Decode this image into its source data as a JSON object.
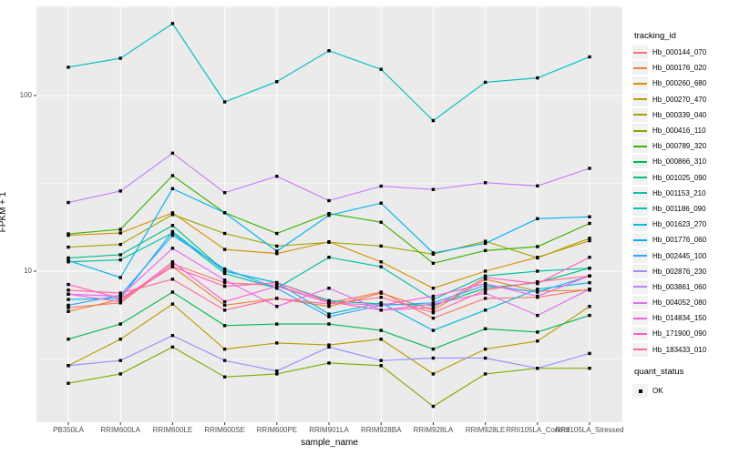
{
  "chart_data": {
    "type": "line",
    "xlabel": "sample_name",
    "ylabel": "FPKM + 1",
    "y_scale": "log10",
    "y_ticks": [
      100,
      10
    ],
    "y_minor_gridlines": [
      316.23,
      31.62,
      3.162
    ],
    "grid": "on",
    "legend_position": "right",
    "legend_title": "tracking_id",
    "quant_legend": {
      "title": "quant_status",
      "items": [
        "OK"
      ]
    },
    "point_shape": "square",
    "categories": [
      "PB350LA",
      "RRIM600LA",
      "RRIM600LE",
      "RRIM600SE",
      "RRIM600PE",
      "RRIM901LA",
      "RRIM928BA",
      "RRIM928LA",
      "RRIM928LE",
      "RRII105LA_Control",
      "RRII105LA_Stressed"
    ],
    "series": [
      {
        "name": "Hb_000144_070",
        "color": "#F8766D",
        "values": [
          6.2,
          6.6,
          11.0,
          8.6,
          8.3,
          6.6,
          7.6,
          5.4,
          7.0,
          7.1,
          7.9
        ]
      },
      {
        "name": "Hb_000176_020",
        "color": "#EA8331",
        "values": [
          5.9,
          6.9,
          10.6,
          6.4,
          7.0,
          6.3,
          7.5,
          6.0,
          9.0,
          7.7,
          7.8
        ]
      },
      {
        "name": "Hb_000260_680",
        "color": "#D89000",
        "values": [
          16.0,
          16.5,
          21.5,
          13.3,
          12.6,
          14.7,
          11.3,
          8.0,
          10.0,
          12.0,
          14.9
        ]
      },
      {
        "name": "Hb_000270_470",
        "color": "#C09B00",
        "values": [
          2.9,
          4.1,
          6.5,
          3.6,
          3.9,
          3.8,
          4.1,
          2.6,
          3.6,
          4.0,
          6.3
        ]
      },
      {
        "name": "Hb_000339_040",
        "color": "#A3A500",
        "values": [
          13.7,
          14.2,
          21.0,
          16.4,
          13.9,
          14.6,
          13.9,
          12.5,
          14.8,
          11.9,
          15.4
        ]
      },
      {
        "name": "Hb_000416_110",
        "color": "#7CAE00",
        "values": [
          2.3,
          2.6,
          3.7,
          2.5,
          2.6,
          3.0,
          2.9,
          1.7,
          2.6,
          2.8,
          2.8
        ]
      },
      {
        "name": "Hb_000789_320",
        "color": "#39B600",
        "values": [
          16.3,
          17.3,
          35.0,
          21.5,
          16.4,
          21.3,
          19.0,
          11.1,
          13.1,
          13.8,
          18.7
        ]
      },
      {
        "name": "Hb_000866_310",
        "color": "#00BB4E",
        "values": [
          4.1,
          5.0,
          7.6,
          4.9,
          5.0,
          5.0,
          4.6,
          3.6,
          4.7,
          4.5,
          5.6
        ]
      },
      {
        "name": "Hb_001025_090",
        "color": "#00BF7D",
        "values": [
          11.9,
          12.4,
          18.2,
          10.0,
          8.6,
          6.8,
          6.5,
          6.4,
          8.0,
          8.6,
          10.4
        ]
      },
      {
        "name": "Hb_001153_210",
        "color": "#00C1A3",
        "values": [
          11.3,
          11.6,
          16.5,
          9.7,
          8.0,
          12.0,
          10.6,
          6.9,
          9.4,
          10.0,
          10.4
        ]
      },
      {
        "name": "Hb_001186_090",
        "color": "#00BFC4",
        "values": [
          145,
          163,
          257,
          92,
          120,
          180,
          141,
          72,
          119,
          126,
          166
        ]
      },
      {
        "name": "Hb_001623_270",
        "color": "#00BAE0",
        "values": [
          6.9,
          7.0,
          16.8,
          10.0,
          8.6,
          5.7,
          6.6,
          4.6,
          6.0,
          7.9,
          8.6
        ]
      },
      {
        "name": "Hb_001776_060",
        "color": "#00B0F6",
        "values": [
          11.5,
          9.2,
          29.5,
          21.5,
          13.0,
          20.8,
          24.4,
          12.7,
          14.4,
          19.9,
          20.4
        ]
      },
      {
        "name": "Hb_002445_100",
        "color": "#35A2FF",
        "values": [
          6.4,
          7.3,
          16.0,
          10.3,
          8.0,
          5.5,
          6.4,
          6.6,
          8.3,
          7.6,
          9.4
        ]
      },
      {
        "name": "Hb_002876_230",
        "color": "#9590FF",
        "values": [
          2.9,
          3.1,
          4.3,
          3.1,
          2.7,
          3.7,
          3.1,
          3.2,
          3.2,
          2.8,
          3.4
        ]
      },
      {
        "name": "Hb_003861_060",
        "color": "#C77CFF",
        "values": [
          24.6,
          28.6,
          47.0,
          28.0,
          34.7,
          25.2,
          30.5,
          29.2,
          31.9,
          30.6,
          38.5
        ]
      },
      {
        "name": "Hb_004052_080",
        "color": "#E76BF3",
        "values": [
          7.4,
          7.2,
          13.5,
          8.9,
          6.3,
          8.0,
          6.0,
          6.5,
          7.5,
          5.6,
          7.9
        ]
      },
      {
        "name": "Hb_014834_150",
        "color": "#FA62DB",
        "values": [
          7.4,
          6.7,
          11.3,
          6.7,
          8.2,
          6.6,
          6.4,
          7.2,
          8.5,
          7.2,
          9.4
        ]
      },
      {
        "name": "Hb_171900_090",
        "color": "#FF62BC",
        "values": [
          8.4,
          7.0,
          10.6,
          8.2,
          8.6,
          6.7,
          6.0,
          6.2,
          9.2,
          8.5,
          12.0
        ]
      },
      {
        "name": "Hb_183433_010",
        "color": "#FF6A98",
        "values": [
          7.8,
          7.5,
          9.0,
          6.0,
          7.0,
          6.5,
          7.1,
          5.8,
          7.8,
          8.7,
          9.4
        ]
      }
    ],
    "style": {
      "panel_bg": "#EBEBEB",
      "grid_color": "#FFFFFF",
      "point_color": "#000000",
      "axis_text_color": "#4D4D4D",
      "tick_color": "#333333"
    }
  }
}
